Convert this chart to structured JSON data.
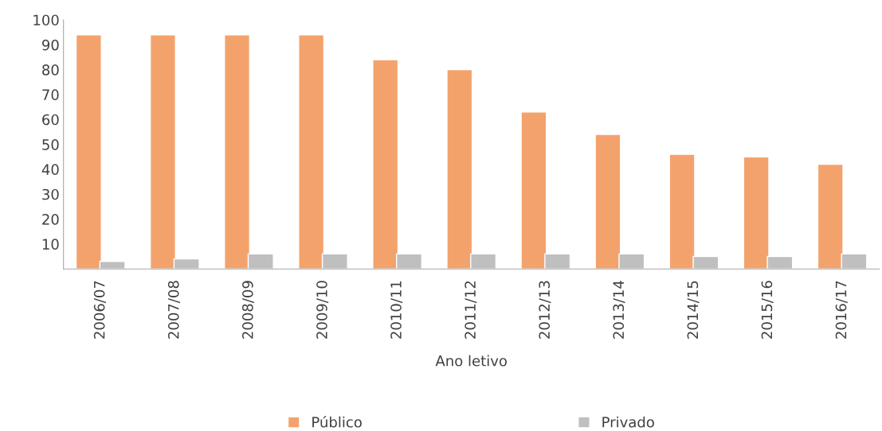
{
  "chart_data": {
    "type": "bar",
    "xlabel": "Ano letivo",
    "categories": [
      "2006/07",
      "2007/08",
      "2008/09",
      "2009/10",
      "2010/11",
      "2011/12",
      "2012/13",
      "2013/14",
      "2014/15",
      "2015/16",
      "2016/17"
    ],
    "series": [
      {
        "name": "Público",
        "color": "#f4a26c",
        "values": [
          94,
          94,
          94,
          94,
          84,
          80,
          63,
          54,
          46,
          45,
          42
        ]
      },
      {
        "name": "Privado",
        "color": "#bfbfbf",
        "values": [
          3,
          4,
          6,
          6,
          6,
          6,
          6,
          6,
          5,
          5,
          6
        ]
      }
    ],
    "ylim": [
      0,
      100
    ],
    "yticks": [
      10,
      20,
      30,
      40,
      50,
      60,
      70,
      80,
      90,
      100
    ],
    "grid": false,
    "legend": "bottom"
  }
}
